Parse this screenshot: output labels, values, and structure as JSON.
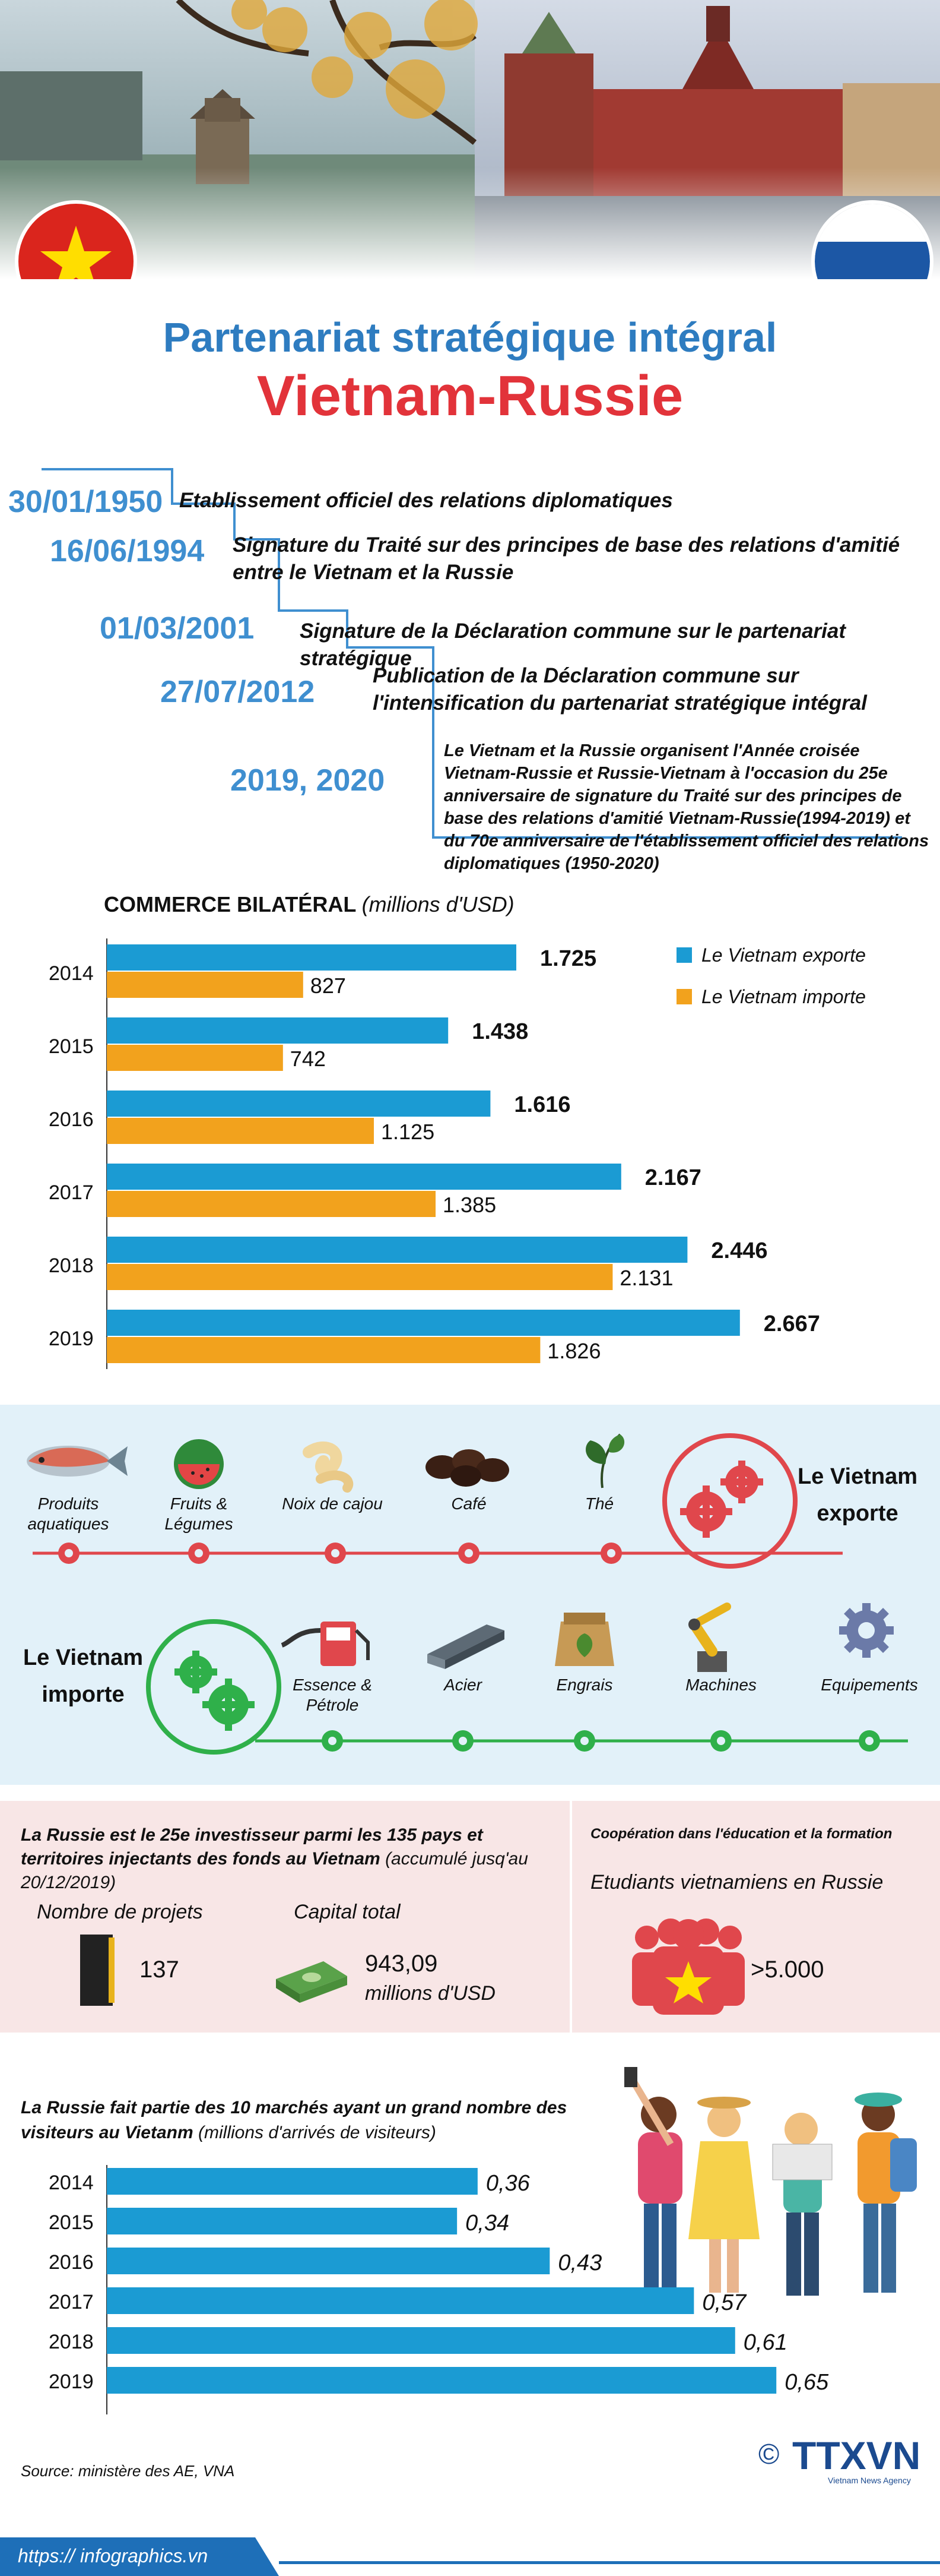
{
  "header": {
    "title_line1": "Partenariat stratégique intégral",
    "title_line2": "Vietnam-Russie"
  },
  "timeline": [
    {
      "date": "30/01/1950",
      "text": "Etablissement officiel des relations diplomatiques"
    },
    {
      "date": "16/06/1994",
      "text": "Signature du Traité sur des principes de base des relations d'amitié entre le Vietnam et la Russie"
    },
    {
      "date": "01/03/2001",
      "text": "Signature de la Déclaration commune sur le partenariat stratégique"
    },
    {
      "date": "27/07/2012",
      "text": "Publication de la Déclaration commune sur l'intensification du partenariat stratégique intégral"
    },
    {
      "date": "2019, 2020",
      "text": "Le Vietnam et la Russie organisent l'Année croisée Vietnam-Russie et Russie-Vietnam à l'occasion du 25e anniversaire de signature du Traité sur des principes de base des relations d'amitié Vietnam-Russie(1994-2019) et du 70e anniversaire de l'établissement officiel des relations diplomatiques (1950-2020)"
    }
  ],
  "trade_chart": {
    "title": "COMMERCE BILATÉRAL",
    "unit": "(millions d'USD)",
    "legend_export": "Le Vietnam exporte",
    "legend_import": "Le Vietnam importe",
    "colors": {
      "export": "#1b9bd3",
      "import": "#f2a21d"
    }
  },
  "exports": {
    "label": "Le Vietnam exporte",
    "items": [
      "Produits aquatiques",
      "Fruits & Légumes",
      "Noix de cajou",
      "Café",
      "Thé"
    ],
    "icons": [
      "fish-icon",
      "watermelon-icon",
      "cashew-icon",
      "coffee-beans-icon",
      "tea-leaf-icon"
    ]
  },
  "imports": {
    "label": "Le Vietnam importe",
    "items": [
      "Essence & Pétrole",
      "Acier",
      "Engrais",
      "Machines",
      "Equipements"
    ],
    "icons": [
      "fuel-pump-icon",
      "steel-beam-icon",
      "fertilizer-bag-icon",
      "robot-arm-icon",
      "gear-icon"
    ]
  },
  "investment": {
    "heading_bold": "La Russie est le 25e investisseur parmi les 135 pays et territoires injectants des fonds au Vietnam",
    "heading_note": "(accumulé jusq'au 20/12/2019)",
    "projects_label": "Nombre de projets",
    "projects_value": "137",
    "capital_label": "Capital total",
    "capital_value": "943,09",
    "capital_unit": "millions d'USD",
    "coop_title": "Coopération dans l'éducation et la formation",
    "students_label": "Etudiants vietnamiens en Russie",
    "students_value": ">5.000"
  },
  "visitors": {
    "heading_bold": "La Russie fait partie des 10 marchés ayant un grand nombre des visiteurs au Vietanm",
    "heading_note": "(millions d'arrivés de visiteurs)"
  },
  "footer": {
    "source": "Source: ministère des AE, VNA",
    "url": "https:// infographics.vn",
    "logo": "TTXVN",
    "logo_sub": "Vietnam News Agency",
    "copyright": "©"
  },
  "chart_data": [
    {
      "type": "bar",
      "title": "COMMERCE BILATÉRAL",
      "categories": [
        "2014",
        "2015",
        "2016",
        "2017",
        "2018",
        "2019"
      ],
      "series": [
        {
          "name": "Le Vietnam exporte",
          "values": [
            1725,
            1438,
            1616,
            2167,
            2446,
            2667
          ],
          "labels": [
            "1.725",
            "1.438",
            "1.616",
            "2.167",
            "2.446",
            "2.667"
          ]
        },
        {
          "name": "Le Vietnam importe",
          "values": [
            827,
            742,
            1125,
            1385,
            2131,
            1826
          ],
          "labels": [
            "827",
            "742",
            "1.125",
            "1.385",
            "2.131",
            "1.826"
          ]
        }
      ],
      "orientation": "horizontal",
      "xlim": [
        0,
        2800
      ],
      "legend": "top-right"
    },
    {
      "type": "bar",
      "categories": [
        "2014",
        "2015",
        "2016",
        "2017",
        "2018",
        "2019"
      ],
      "values": [
        0.36,
        0.34,
        0.43,
        0.57,
        0.61,
        0.65
      ],
      "labels": [
        "0,36",
        "0,34",
        "0,43",
        "0,57",
        "0,61",
        "0,65"
      ],
      "orientation": "horizontal",
      "xlim": [
        0,
        0.7
      ]
    }
  ]
}
